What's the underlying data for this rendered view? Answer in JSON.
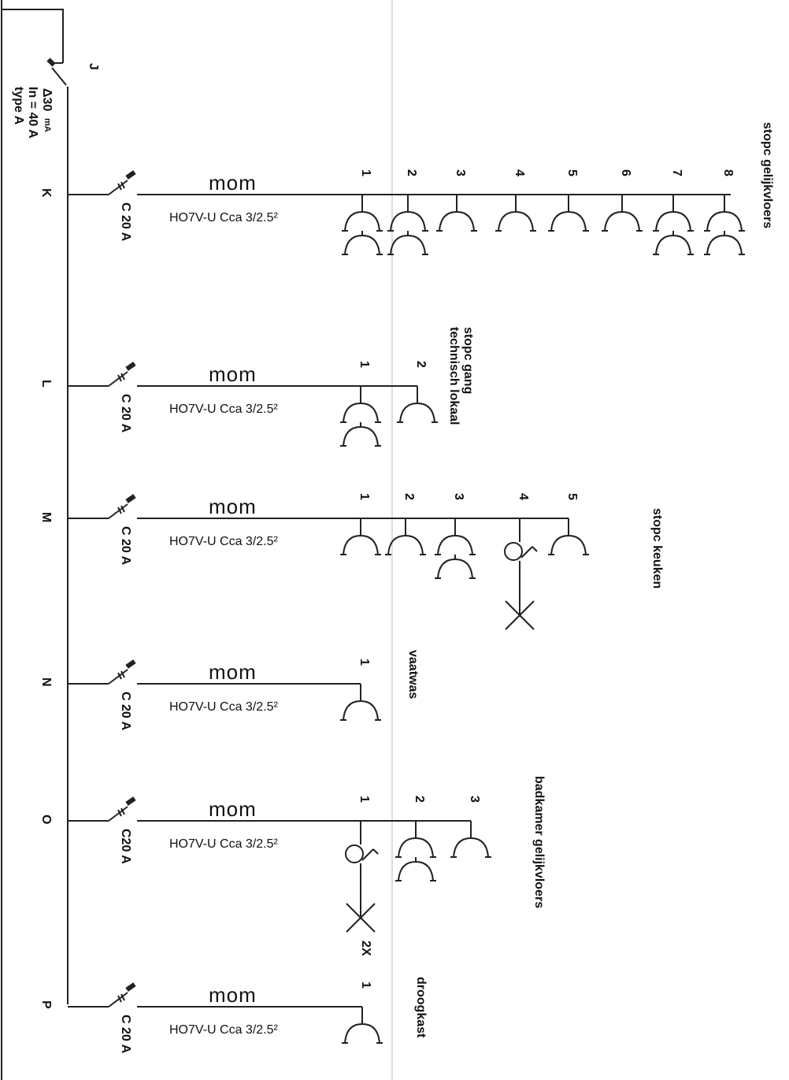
{
  "rcd": {
    "letter": "J",
    "sensitivity": "Δ30",
    "sensitivity_unit": "mA",
    "rating": "In = 40 A",
    "type": "type A"
  },
  "circuits": [
    {
      "letter": "K",
      "breaker": "C 20 A",
      "marker": "mom",
      "cable": "HO7V-U Cca 3/2.5²",
      "name": "stopc gelijkvloers",
      "points": [
        {
          "n": "1",
          "kind": "double"
        },
        {
          "n": "2",
          "kind": "double"
        },
        {
          "n": "3",
          "kind": "single"
        },
        {
          "n": "4",
          "kind": "single"
        },
        {
          "n": "5",
          "kind": "single"
        },
        {
          "n": "6",
          "kind": "single"
        },
        {
          "n": "7",
          "kind": "double"
        },
        {
          "n": "8",
          "kind": "double"
        }
      ]
    },
    {
      "letter": "L",
      "breaker": "C 20 A",
      "marker": "mom",
      "cable": "HO7V-U Cca 3/2.5²",
      "name": "stopc gang",
      "name2": "technisch lokaal",
      "points": [
        {
          "n": "1",
          "kind": "double"
        },
        {
          "n": "2",
          "kind": "single"
        }
      ]
    },
    {
      "letter": "M",
      "breaker": "C 20 A",
      "marker": "mom",
      "cable": "HO7V-U Cca 3/2.5²",
      "name": "stopc keuken",
      "points": [
        {
          "n": "1",
          "kind": "single"
        },
        {
          "n": "2",
          "kind": "single"
        },
        {
          "n": "3",
          "kind": "double"
        },
        {
          "n": "4",
          "kind": "switch-lamp"
        },
        {
          "n": "5",
          "kind": "single"
        }
      ]
    },
    {
      "letter": "N",
      "breaker": "C 20 A",
      "marker": "mom",
      "cable": "HO7V-U Cca 3/2.5²",
      "name": "vaatwas",
      "points": [
        {
          "n": "1",
          "kind": "single"
        }
      ]
    },
    {
      "letter": "O",
      "breaker": "C20 A",
      "marker": "mom",
      "cable": "HO7V-U Cca 3/2.5²",
      "name": "badkamer gelijkvloers",
      "points": [
        {
          "n": "1",
          "kind": "switch-lamp",
          "extra": "2X"
        },
        {
          "n": "2",
          "kind": "double"
        },
        {
          "n": "3",
          "kind": "single"
        }
      ]
    },
    {
      "letter": "P",
      "breaker": "C 20 A",
      "marker": "mom",
      "cable": "HO7V-U Cca 3/2.5²",
      "name": "droogkast",
      "points": [
        {
          "n": "1",
          "kind": "single"
        }
      ]
    }
  ]
}
